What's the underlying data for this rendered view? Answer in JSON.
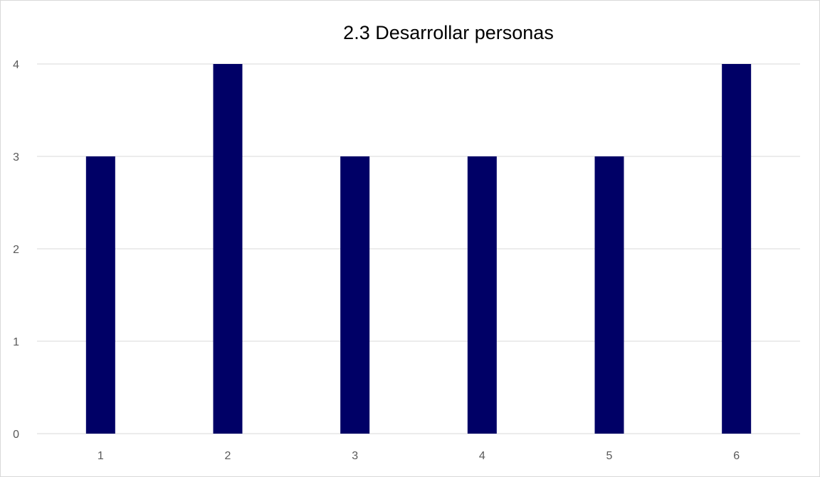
{
  "chart_data": {
    "type": "bar",
    "title": "2.3 Desarrollar personas",
    "xlabel": "",
    "ylabel": "",
    "categories": [
      "1",
      "2",
      "3",
      "4",
      "5",
      "6"
    ],
    "values": [
      3,
      4,
      3,
      3,
      3,
      4
    ],
    "ylim": [
      0,
      4
    ],
    "yticks": [
      "0",
      "1",
      "2",
      "3",
      "4"
    ],
    "grid": true,
    "legend": "none",
    "bar_color": "#000066",
    "grid_color": "#d9d9d9"
  }
}
